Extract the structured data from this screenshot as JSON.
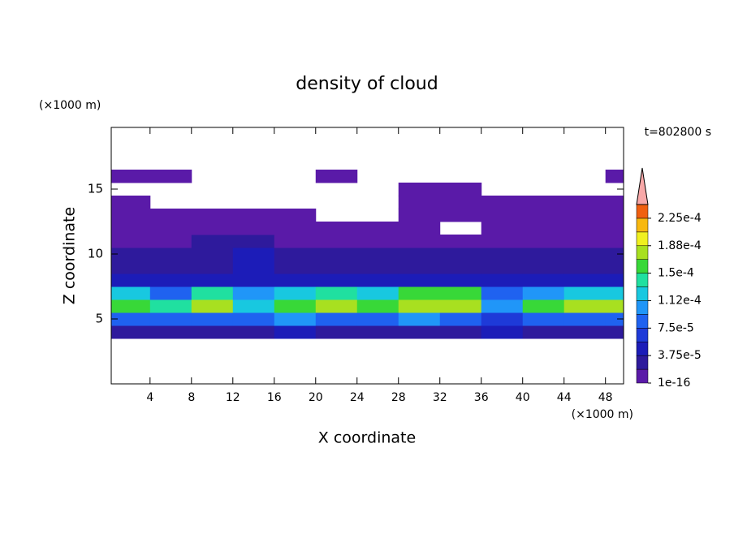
{
  "chart_data": {
    "type": "contour",
    "title": "density of cloud",
    "subtitle": "t=802800 s",
    "x_label": "X coordinate",
    "y_label": "Z coordinate",
    "x_unit": "(×1000 m)",
    "y_unit": "(×1000 m)",
    "xlim": [
      0.25,
      49.75
    ],
    "xticks": [
      4,
      8,
      12,
      16,
      20,
      24,
      28,
      32,
      36,
      40,
      44,
      48
    ],
    "ylim": [
      0,
      19.75
    ],
    "yticks": [
      5,
      10,
      15
    ],
    "x": [
      2,
      6,
      10,
      14,
      18,
      22,
      26,
      30,
      34,
      38,
      42,
      46,
      50
    ],
    "y": [
      4,
      5,
      6,
      7,
      8,
      9,
      10,
      11,
      12,
      13,
      14,
      15,
      16
    ],
    "z": [
      [
        3e-05,
        3e-05,
        3.5e-05,
        3e-05,
        4e-05,
        3e-05,
        3e-05,
        3e-05,
        3e-05,
        4e-05,
        3e-05,
        3e-05,
        3e-05
      ],
      [
        9e-05,
        8.5e-05,
        9e-05,
        8e-05,
        9.5e-05,
        9e-05,
        9e-05,
        9.5e-05,
        9e-05,
        7e-05,
        9e-05,
        9e-05,
        9e-05
      ],
      [
        0.00016,
        0.00014,
        0.00017,
        0.00013,
        0.00016,
        0.00017,
        0.00016,
        0.00018,
        0.00018,
        0.00011,
        0.00015,
        0.00017,
        0.00017
      ],
      [
        0.00012,
        9e-05,
        0.00014,
        0.00011,
        0.00013,
        0.00014,
        0.00012,
        0.00016,
        0.00016,
        8e-05,
        0.00011,
        0.00013,
        0.00012
      ],
      [
        5e-05,
        4e-05,
        5e-05,
        5.5e-05,
        5e-05,
        4.5e-05,
        4e-05,
        4.5e-05,
        5e-05,
        4e-05,
        4.5e-05,
        5e-05,
        5e-05
      ],
      [
        3e-05,
        2.5e-05,
        3e-05,
        4e-05,
        3e-05,
        2.5e-05,
        3e-05,
        2.5e-05,
        3e-05,
        2.5e-05,
        2.5e-05,
        3e-05,
        3e-05
      ],
      [
        2e-05,
        2e-05,
        3e-05,
        4e-05,
        2e-05,
        2e-05,
        2e-05,
        2e-05,
        2e-05,
        2e-05,
        2e-05,
        2.5e-05,
        2.5e-05
      ],
      [
        1e-05,
        1e-05,
        2e-05,
        2e-05,
        1e-05,
        1e-05,
        1e-05,
        1e-05,
        1e-05,
        1e-05,
        1e-05,
        1e-05,
        1e-05
      ],
      [
        5e-06,
        1e-05,
        1e-05,
        1e-05,
        5e-06,
        5e-06,
        5e-06,
        5e-06,
        null,
        5e-06,
        5e-06,
        5e-06,
        5e-06
      ],
      [
        1e-06,
        1e-06,
        1e-06,
        1e-06,
        1e-06,
        null,
        null,
        1e-06,
        1e-06,
        1e-06,
        1e-06,
        1e-06,
        1e-06
      ],
      [
        1e-06,
        null,
        null,
        null,
        null,
        null,
        null,
        1e-06,
        1e-06,
        1e-06,
        1e-06,
        1e-06,
        1e-06
      ],
      [
        null,
        null,
        null,
        null,
        null,
        null,
        null,
        1e-06,
        1e-06,
        null,
        null,
        null,
        null
      ],
      [
        1e-06,
        1e-06,
        null,
        null,
        null,
        1e-06,
        null,
        null,
        null,
        null,
        null,
        null,
        1e-06
      ]
    ],
    "levels": [
      1e-16,
      1.875e-05,
      3.75e-05,
      5.625e-05,
      7.5e-05,
      9.375e-05,
      0.0001125,
      0.00013125,
      0.00015,
      0.00016875,
      0.0001875,
      0.00020625,
      0.000225,
      0.00024375
    ],
    "colors": [
      "#5a1aa8",
      "#2e1a9c",
      "#1c1cb8",
      "#1e3ad8",
      "#1f62f0",
      "#2096f8",
      "#18c8e0",
      "#20e0a0",
      "#38d838",
      "#a8e020",
      "#f0f020",
      "#f8b810",
      "#f06010"
    ],
    "extend_color": "#f8a8a8",
    "colorbar_ticks": [
      {
        "value": 1e-16,
        "label": "1e-16"
      },
      {
        "value": 3.75e-05,
        "label": "3.75e-5"
      },
      {
        "value": 7.5e-05,
        "label": "7.5e-5"
      },
      {
        "value": 0.0001125,
        "label": "1.12e-4"
      },
      {
        "value": 0.00015,
        "label": "1.5e-4"
      },
      {
        "value": 0.0001875,
        "label": "1.88e-4"
      },
      {
        "value": 0.000225,
        "label": "2.25e-4"
      }
    ]
  }
}
